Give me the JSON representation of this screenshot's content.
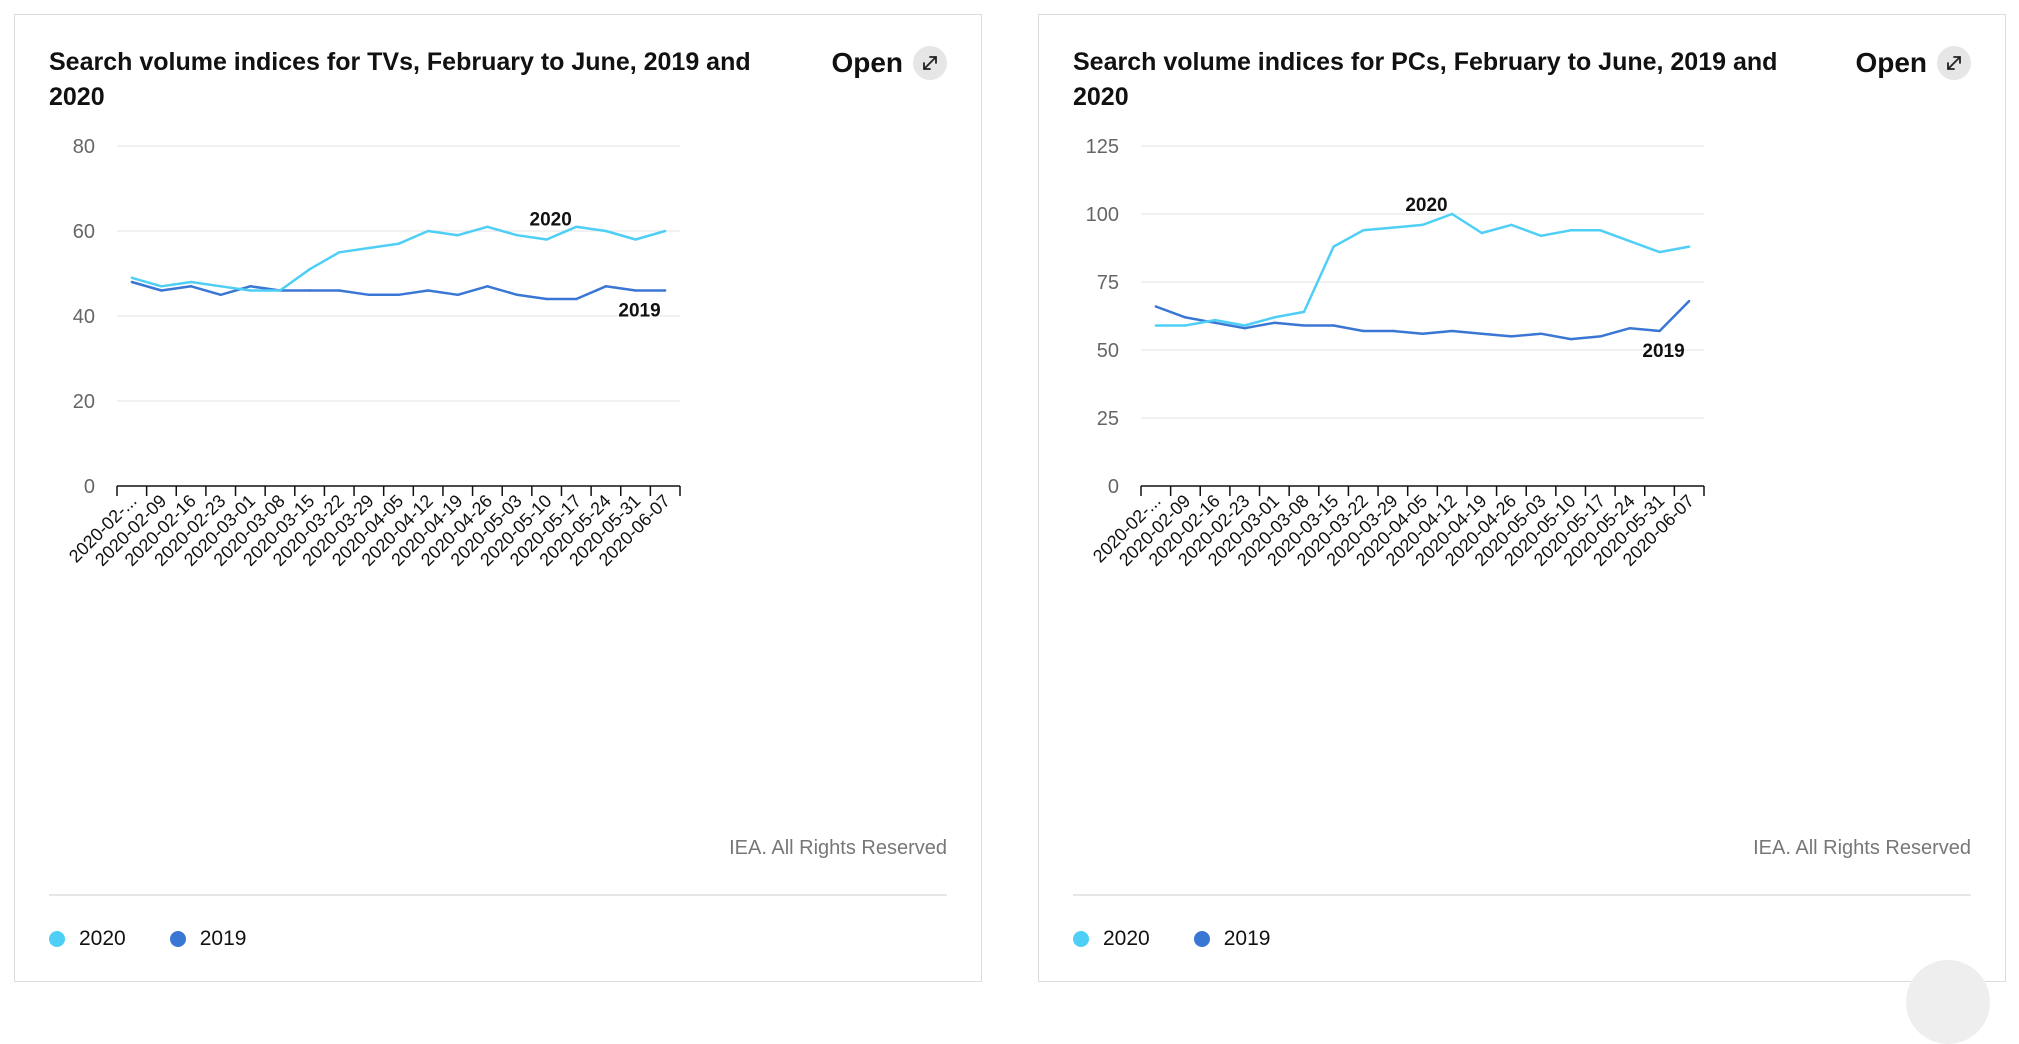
{
  "charts": [
    {
      "title": "Search volume indices for TVs, February to June, 2019 and 2020",
      "open_label": "Open",
      "credit": "IEA. All Rights Reserved",
      "legend": [
        {
          "label": "2020",
          "color": "#4fcff5"
        },
        {
          "label": "2019",
          "color": "#3a76d4"
        }
      ]
    },
    {
      "title": "Search volume indices for PCs, February to June, 2019 and 2020",
      "open_label": "Open",
      "credit": "IEA. All Rights Reserved",
      "legend": [
        {
          "label": "2020",
          "color": "#4fcff5"
        },
        {
          "label": "2019",
          "color": "#3a76d4"
        }
      ]
    }
  ],
  "chart_data": [
    {
      "type": "line",
      "title": "Search volume indices for TVs, February to June, 2019 and 2020",
      "xlabel": "",
      "ylabel": "",
      "x": [
        "2020-02-...",
        "2020-02-09",
        "2020-02-16",
        "2020-02-23",
        "2020-03-01",
        "2020-03-08",
        "2020-03-15",
        "2020-03-22",
        "2020-03-29",
        "2020-04-05",
        "2020-04-12",
        "2020-04-19",
        "2020-04-26",
        "2020-05-03",
        "2020-05-10",
        "2020-05-17",
        "2020-05-24",
        "2020-05-31",
        "2020-06-07"
      ],
      "ylim": [
        0,
        80
      ],
      "yticks": [
        0,
        20,
        40,
        60,
        80
      ],
      "grid": true,
      "series": [
        {
          "name": "2020",
          "color": "#4fcff5",
          "values": [
            49,
            47,
            48,
            47,
            46,
            46,
            51,
            55,
            56,
            57,
            60,
            59,
            61,
            59,
            58,
            61,
            60,
            58,
            60
          ]
        },
        {
          "name": "2019",
          "color": "#3a76d4",
          "values": [
            48,
            46,
            47,
            45,
            47,
            46,
            46,
            46,
            45,
            45,
            46,
            45,
            47,
            45,
            44,
            44,
            47,
            46,
            46
          ]
        }
      ],
      "annotations": [
        {
          "text": "2020",
          "series": "2020",
          "index": 14
        },
        {
          "text": "2019",
          "series": "2019",
          "index": 17
        }
      ]
    },
    {
      "type": "line",
      "title": "Search volume indices for PCs, February to June, 2019 and 2020",
      "xlabel": "",
      "ylabel": "",
      "x": [
        "2020-02-...",
        "2020-02-09",
        "2020-02-16",
        "2020-02-23",
        "2020-03-01",
        "2020-03-08",
        "2020-03-15",
        "2020-03-22",
        "2020-03-29",
        "2020-04-05",
        "2020-04-12",
        "2020-04-19",
        "2020-04-26",
        "2020-05-03",
        "2020-05-10",
        "2020-05-17",
        "2020-05-24",
        "2020-05-31",
        "2020-06-07"
      ],
      "ylim": [
        0,
        125
      ],
      "yticks": [
        0,
        25,
        50,
        75,
        100,
        125
      ],
      "grid": true,
      "series": [
        {
          "name": "2020",
          "color": "#4fcff5",
          "values": [
            59,
            59,
            61,
            59,
            62,
            64,
            88,
            94,
            95,
            96,
            100,
            93,
            96,
            92,
            94,
            94,
            90,
            86,
            88
          ]
        },
        {
          "name": "2019",
          "color": "#3a76d4",
          "values": [
            66,
            62,
            60,
            58,
            60,
            59,
            59,
            57,
            57,
            56,
            57,
            56,
            55,
            56,
            54,
            55,
            58,
            57,
            68
          ]
        }
      ],
      "annotations": [
        {
          "text": "2020",
          "series": "2020",
          "index": 9
        },
        {
          "text": "2019",
          "series": "2019",
          "index": 17
        }
      ]
    }
  ]
}
